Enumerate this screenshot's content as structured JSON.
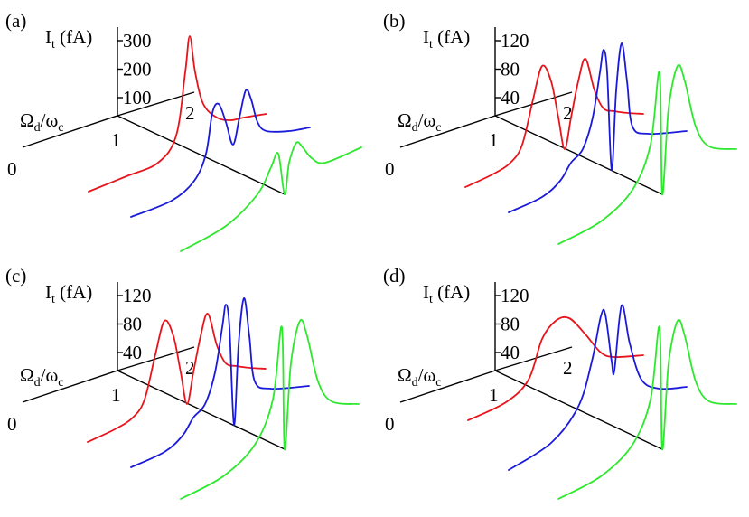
{
  "panels": [
    {
      "label": "(a)",
      "y_label": [
        "I",
        "t",
        " (fA)"
      ],
      "x_label": [
        "Ω",
        "d",
        "/ω",
        "c"
      ],
      "y_ticks": [
        100,
        200,
        300
      ],
      "depth_ticks": [
        0,
        1,
        2
      ]
    },
    {
      "label": "(b)",
      "y_label": [
        "I",
        "t",
        " (fA)"
      ],
      "x_label": [
        "Ω",
        "d",
        "/ω",
        "c"
      ],
      "y_ticks": [
        40,
        80,
        120
      ],
      "depth_ticks": [
        0,
        1,
        2
      ]
    },
    {
      "label": "(c)",
      "y_label": [
        "I",
        "t",
        " (fA)"
      ],
      "x_label": [
        "Ω",
        "d",
        "/ω",
        "c"
      ],
      "y_ticks": [
        40,
        80,
        120
      ],
      "depth_ticks": [
        0,
        1,
        2
      ]
    },
    {
      "label": "(d)",
      "y_label": [
        "I",
        "t",
        " (fA)"
      ],
      "x_label": [
        "Ω",
        "d",
        "/ω",
        "c"
      ],
      "y_ticks": [
        40,
        80,
        120
      ],
      "depth_ticks": [
        0,
        1,
        2
      ]
    }
  ]
}
